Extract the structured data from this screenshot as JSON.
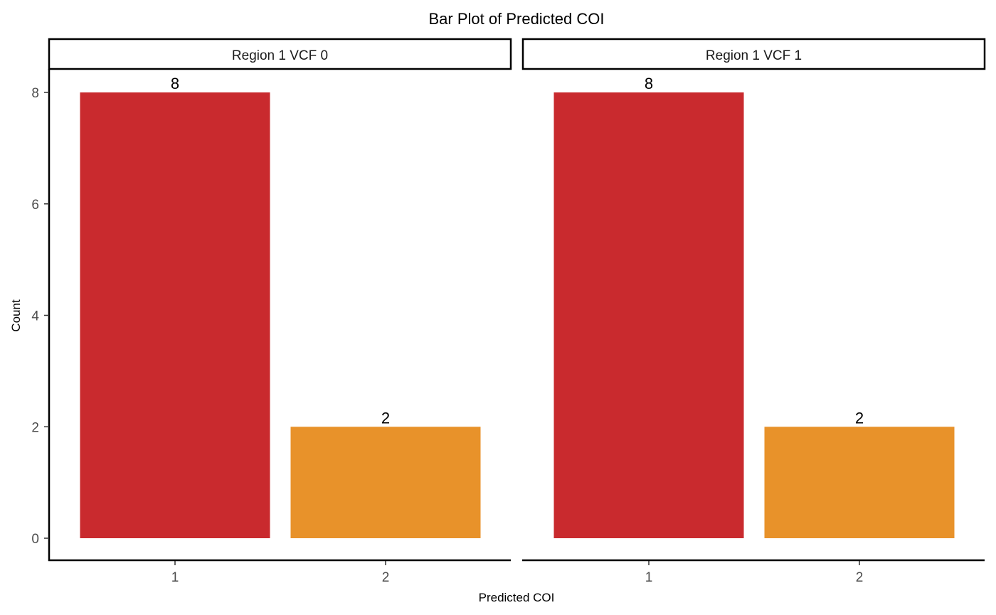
{
  "chart_data": {
    "type": "bar",
    "title": "Bar Plot of Predicted COI",
    "xlabel": "Predicted COI",
    "ylabel": "Count",
    "ylim": [
      0,
      8
    ],
    "yticks": [
      "0",
      "2",
      "4",
      "6",
      "8"
    ],
    "categories": [
      "1",
      "2"
    ],
    "bar_colors": [
      "#C92A2E",
      "#E8922A"
    ],
    "grid": false,
    "legend": "none",
    "facets": [
      {
        "label": "Region 1 VCF 0",
        "values": [
          8,
          2
        ]
      },
      {
        "label": "Region 1 VCF 1",
        "values": [
          8,
          2
        ]
      }
    ]
  }
}
